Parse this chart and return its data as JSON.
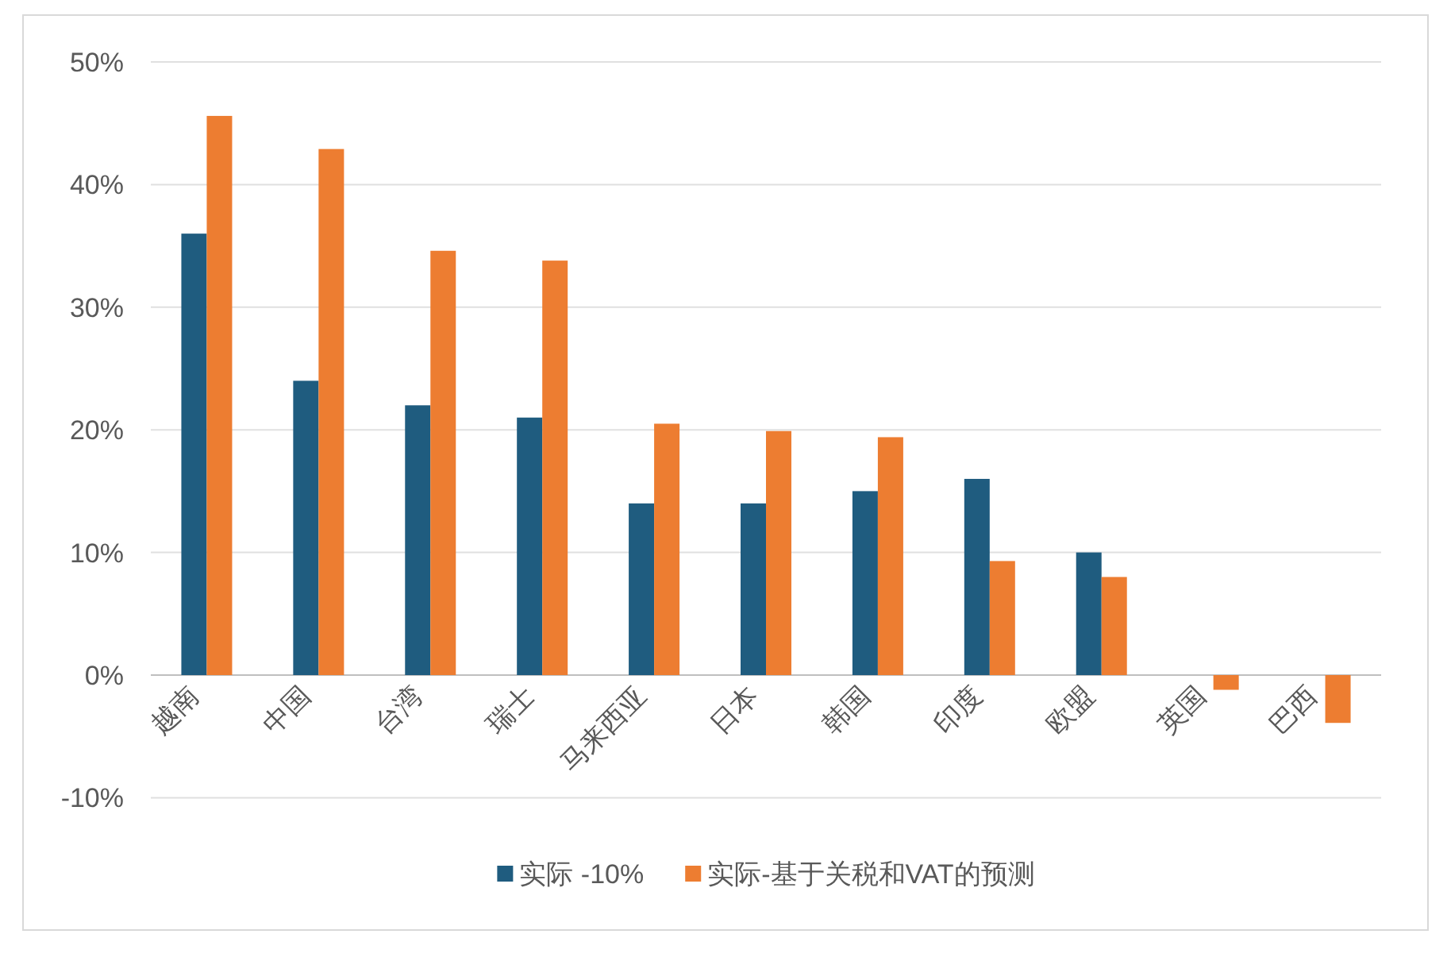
{
  "chart_data": {
    "type": "bar",
    "categories": [
      "越南",
      "中国",
      "台湾",
      "瑞士",
      "马来西亚",
      "日本",
      "韩国",
      "印度",
      "欧盟",
      "英国",
      "巴西"
    ],
    "series": [
      {
        "name": "实际 -10%",
        "color": "#1f5c7f",
        "values": [
          36,
          24,
          22,
          21,
          14,
          14,
          15,
          16,
          10,
          null,
          null
        ]
      },
      {
        "name": "实际-基于关税和VAT的预测",
        "color": "#ed7d31",
        "values": [
          45.6,
          42.9,
          34.6,
          33.8,
          20.5,
          19.9,
          19.4,
          9.3,
          8.0,
          -1.2,
          -3.9
        ]
      }
    ],
    "ylim": [
      -10,
      50
    ],
    "yticks": [
      {
        "value": -10,
        "label": "-10%"
      },
      {
        "value": 0,
        "label": "0%"
      },
      {
        "value": 10,
        "label": "10%"
      },
      {
        "value": 20,
        "label": "20%"
      },
      {
        "value": 30,
        "label": "30%"
      },
      {
        "value": 40,
        "label": "40%"
      },
      {
        "value": 50,
        "label": "50%"
      }
    ],
    "grid": "y",
    "legend": "bottom"
  }
}
